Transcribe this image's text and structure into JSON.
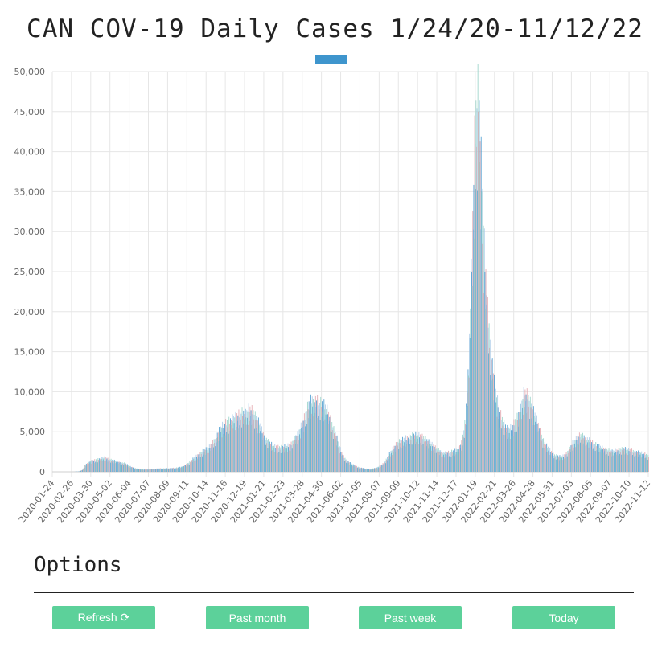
{
  "chart_data": {
    "type": "bar",
    "title": "CAN COV-19 Daily Cases 1/24/20-11/12/22",
    "x_ticks": [
      "2020-01-24",
      "2020-02-26",
      "2020-03-30",
      "2020-05-02",
      "2020-06-04",
      "2020-07-07",
      "2020-08-09",
      "2020-09-11",
      "2020-10-14",
      "2020-11-16",
      "2020-12-19",
      "2021-01-21",
      "2021-02-23",
      "2021-03-28",
      "2021-04-30",
      "2021-06-02",
      "2021-07-05",
      "2021-08-07",
      "2021-09-09",
      "2021-10-12",
      "2021-11-14",
      "2021-12-17",
      "2022-01-19",
      "2022-02-21",
      "2022-03-26",
      "2022-04-28",
      "2022-05-31",
      "2022-07-03",
      "2022-08-05",
      "2022-09-07",
      "2022-10-10",
      "2022-11-12"
    ],
    "y_ticks": [
      "0",
      "5,000",
      "10,000",
      "15,000",
      "20,000",
      "25,000",
      "30,000",
      "35,000",
      "40,000",
      "45,000",
      "50,000"
    ],
    "ylim": [
      0,
      50000
    ],
    "grid": true,
    "legend": "top",
    "series_color": "#3e95cd",
    "bar_colors": [
      "#3e95cd",
      "#8fd0c4",
      "#e0a0a8",
      "#a6c8e8"
    ],
    "weekly_estimates": {
      "start": "2020-01-24",
      "step_days": 7,
      "values": [
        0,
        0,
        0,
        0,
        0,
        0,
        0,
        10,
        50,
        200,
        800,
        1200,
        1300,
        1400,
        1500,
        1600,
        1700,
        1500,
        1400,
        1300,
        1200,
        1100,
        1000,
        800,
        600,
        450,
        350,
        300,
        280,
        300,
        330,
        350,
        380,
        400,
        380,
        400,
        420,
        450,
        480,
        550,
        700,
        900,
        1200,
        1600,
        1900,
        2200,
        2500,
        2700,
        3000,
        3500,
        4200,
        5000,
        5500,
        5800,
        6000,
        6300,
        6600,
        6800,
        7000,
        6800,
        7500,
        7200,
        6500,
        5800,
        4800,
        4000,
        3500,
        3200,
        3000,
        2900,
        2900,
        3000,
        3100,
        3300,
        4000,
        4500,
        5500,
        6500,
        7800,
        8500,
        8700,
        8300,
        8100,
        7800,
        7200,
        6000,
        4800,
        3800,
        2500,
        1700,
        1300,
        1000,
        800,
        600,
        500,
        400,
        350,
        300,
        400,
        500,
        700,
        1000,
        1500,
        2200,
        2800,
        3300,
        3600,
        3800,
        4000,
        4100,
        4300,
        4400,
        4300,
        4100,
        3800,
        3500,
        3200,
        2800,
        2500,
        2300,
        2200,
        2300,
        2400,
        2500,
        2800,
        3500,
        6000,
        12000,
        25000,
        41000,
        45000,
        35000,
        25000,
        18000,
        14000,
        10000,
        8000,
        6500,
        5500,
        5000,
        5200,
        5800,
        6500,
        7500,
        9500,
        9000,
        8000,
        7000,
        6000,
        4500,
        3500,
        3000,
        2500,
        2000,
        1900,
        1800,
        1900,
        2200,
        2800,
        3500,
        4000,
        4300,
        4200,
        4000,
        3700,
        3400,
        3200,
        3000,
        2800,
        2600,
        2500,
        2400,
        2500,
        2600,
        2700,
        2700,
        2600,
        2500,
        2400,
        2300,
        2200,
        2100,
        1800
      ]
    }
  },
  "options": {
    "title": "Options",
    "buttons": [
      "Refresh ⟳",
      "Past month",
      "Past week",
      "Today"
    ]
  }
}
